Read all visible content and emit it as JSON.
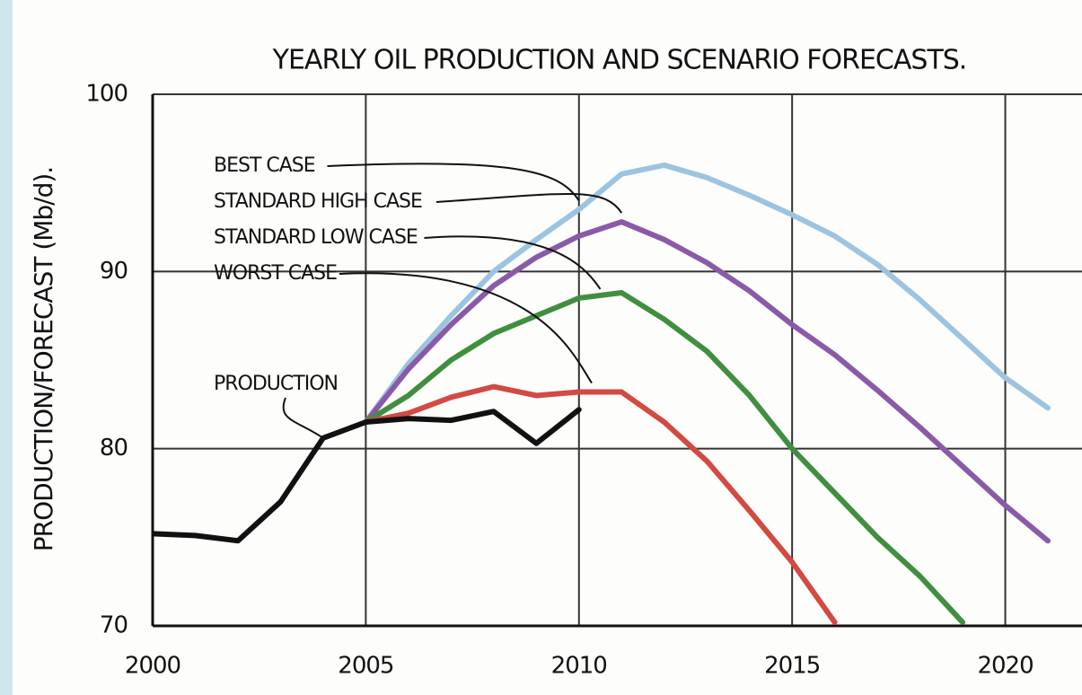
{
  "chart_data": {
    "type": "line",
    "title": "YEARLY OIL PRODUCTION AND SCENARIO FORECASTS.",
    "y_label": "PRODUCTION/FORECAST (Mb/d).",
    "x": [
      2000,
      2001,
      2002,
      2003,
      2004,
      2005,
      2006,
      2007,
      2008,
      2009,
      2010,
      2011,
      2012,
      2013,
      2014,
      2015,
      2016,
      2017,
      2018,
      2019,
      2020,
      2021
    ],
    "series": [
      {
        "name": "BEST CASE",
        "color": "#9cc4e0",
        "values": [
          null,
          null,
          null,
          null,
          null,
          81.5,
          84.8,
          87.5,
          90,
          91.8,
          93.5,
          95.5,
          96,
          95.3,
          94.3,
          93.2,
          92,
          90.4,
          88.4,
          86.2,
          84,
          82.3
        ]
      },
      {
        "name": "STANDARD HIGH CASE",
        "color": "#8a5aa8",
        "values": [
          null,
          null,
          null,
          null,
          null,
          81.5,
          84.5,
          87,
          89.2,
          90.8,
          92,
          92.8,
          91.8,
          90.5,
          88.9,
          87,
          85.3,
          83.3,
          81.2,
          79,
          76.8,
          74.8
        ]
      },
      {
        "name": "STANDARD LOW CASE",
        "color": "#3f8f3f",
        "values": [
          null,
          null,
          null,
          null,
          null,
          81.5,
          83,
          85,
          86.5,
          87.5,
          88.5,
          88.8,
          87.3,
          85.5,
          83,
          80,
          77.5,
          75,
          72.8,
          70.2,
          null,
          null
        ]
      },
      {
        "name": "WORST CASE",
        "color": "#d24a42",
        "values": [
          null,
          null,
          null,
          null,
          null,
          81.5,
          82,
          82.9,
          83.5,
          83,
          83.2,
          83.2,
          81.5,
          79.3,
          76.5,
          73.6,
          70.2,
          null,
          null,
          null,
          null,
          null
        ]
      },
      {
        "name": "PRODUCTION",
        "color": "#111111",
        "values": [
          75.2,
          75.1,
          74.8,
          77,
          80.6,
          81.5,
          81.7,
          81.6,
          82.1,
          80.3,
          82.2,
          null,
          null,
          null,
          null,
          null,
          null,
          null,
          null,
          null,
          null,
          null
        ]
      }
    ],
    "xlim": [
      2000,
      2021.8
    ],
    "xticks": [
      2000,
      2005,
      2010,
      2015,
      2020
    ],
    "ylim": [
      70,
      100
    ],
    "yticks": [
      70,
      80,
      90,
      100
    ],
    "grid": true
  }
}
